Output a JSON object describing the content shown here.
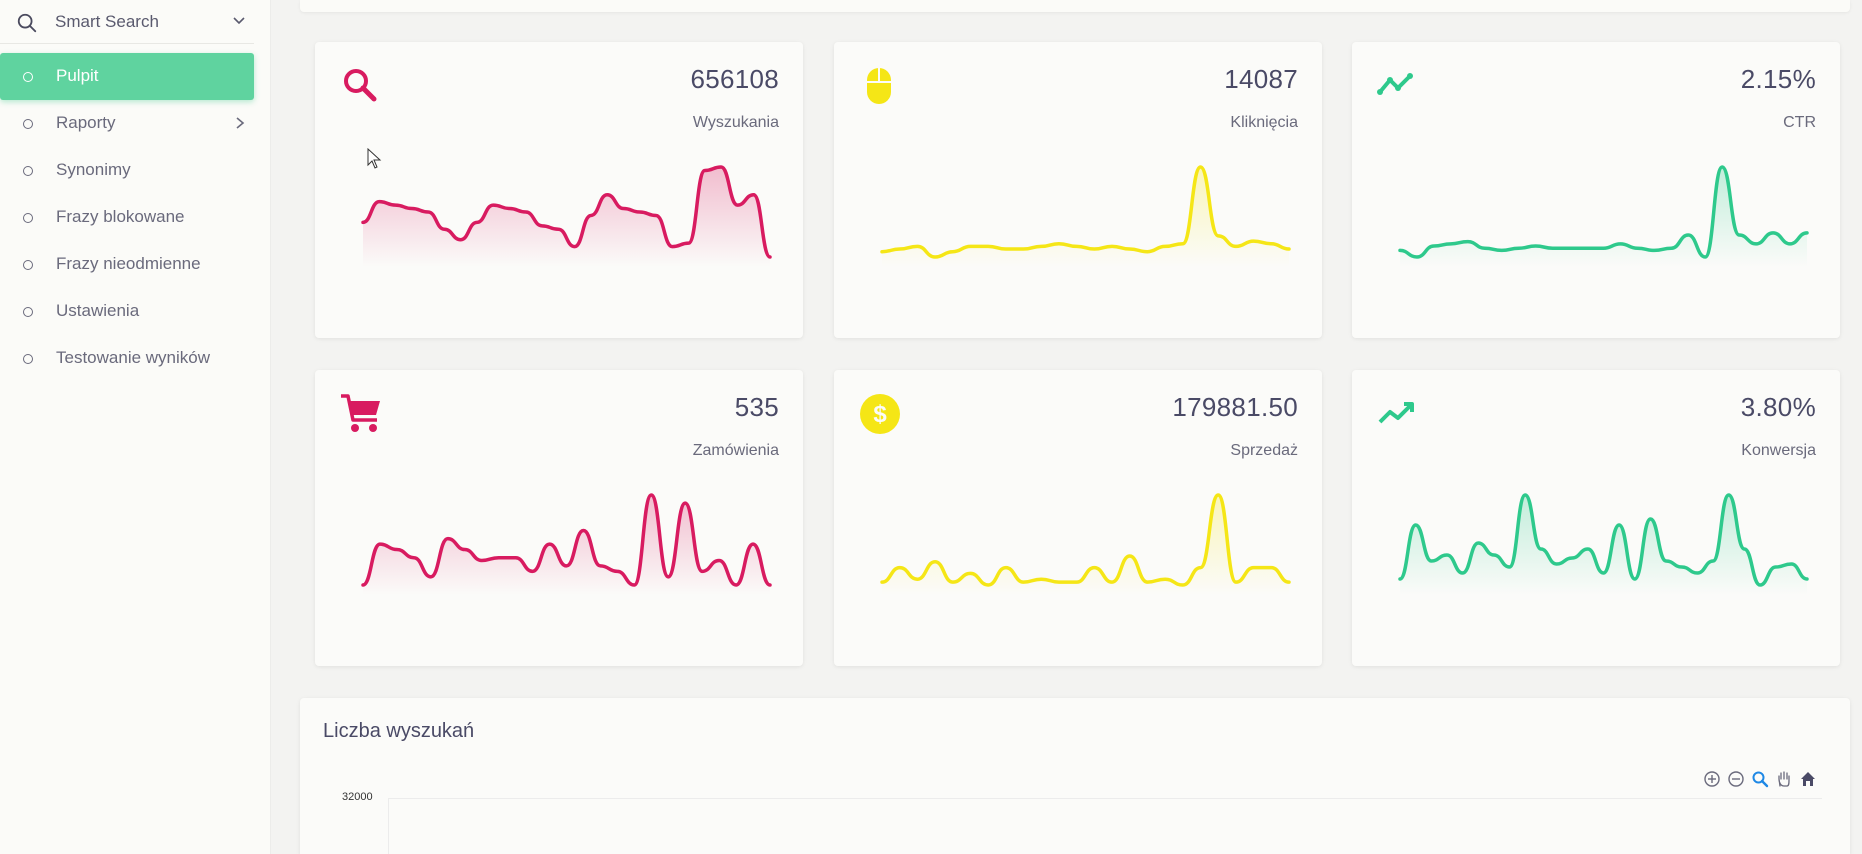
{
  "sidebar": {
    "search_label": "Smart Search",
    "items": [
      {
        "label": "Pulpit",
        "active": true
      },
      {
        "label": "Raporty",
        "has_submenu": true
      },
      {
        "label": "Synonimy"
      },
      {
        "label": "Frazy blokowane"
      },
      {
        "label": "Frazy nieodmienne"
      },
      {
        "label": "Ustawienia"
      },
      {
        "label": "Testowanie wyników"
      }
    ]
  },
  "colors": {
    "accent_green": "#5fd39f",
    "pink": "#d81b60",
    "yellow": "#f5e616",
    "teal": "#2ec98c"
  },
  "cards": [
    {
      "value": "656108",
      "label": "Wyszukania",
      "icon": "search-icon",
      "color": "#d81b60",
      "series": [
        12,
        18,
        17,
        16,
        15,
        10,
        7,
        12,
        17,
        16,
        15,
        11,
        10,
        5,
        14,
        20,
        16,
        15,
        14,
        5,
        6,
        27,
        28,
        17,
        20,
        2
      ]
    },
    {
      "value": "14087",
      "label": "Kliknięcia",
      "icon": "mouse-icon",
      "color": "#f5e616",
      "series": [
        8,
        9,
        10,
        6,
        8,
        10,
        10,
        9,
        9,
        10,
        11,
        10,
        9,
        10,
        9,
        8,
        10,
        11,
        40,
        14,
        10,
        12,
        11,
        9
      ]
    },
    {
      "value": "2.15%",
      "label": "CTR",
      "icon": "trend-line-icon",
      "color": "#2ec98c",
      "series": [
        7,
        4,
        9,
        10,
        11,
        8,
        7,
        8,
        9,
        8,
        8,
        8,
        8,
        10,
        8,
        7,
        8,
        14,
        4,
        45,
        14,
        10,
        15,
        10,
        15
      ]
    },
    {
      "value": "535",
      "label": "Zamówienia",
      "icon": "cart-icon",
      "color": "#d81b60",
      "series": [
        5,
        20,
        18,
        15,
        8,
        22,
        18,
        14,
        15,
        15,
        10,
        20,
        12,
        25,
        12,
        10,
        5,
        38,
        8,
        35,
        10,
        14,
        5,
        20,
        5
      ]
    },
    {
      "value": "179881.50",
      "label": "Sprzedaż",
      "icon": "dollar-icon",
      "color": "#f5e616",
      "series": [
        5,
        10,
        6,
        12,
        5,
        8,
        4,
        10,
        5,
        6,
        5,
        5,
        10,
        5,
        14,
        5,
        6,
        4,
        10,
        35,
        5,
        10,
        10,
        5
      ]
    },
    {
      "value": "3.80%",
      "label": "Konwersja",
      "icon": "trending-up-icon",
      "color": "#2ec98c",
      "series": [
        10,
        28,
        16,
        18,
        12,
        22,
        18,
        14,
        38,
        20,
        15,
        17,
        20,
        12,
        28,
        10,
        30,
        16,
        14,
        12,
        16,
        38,
        20,
        8,
        14,
        15,
        10
      ]
    }
  ],
  "chart_panel": {
    "title": "Liczba wyszukań",
    "y_top_tick": "32000"
  }
}
